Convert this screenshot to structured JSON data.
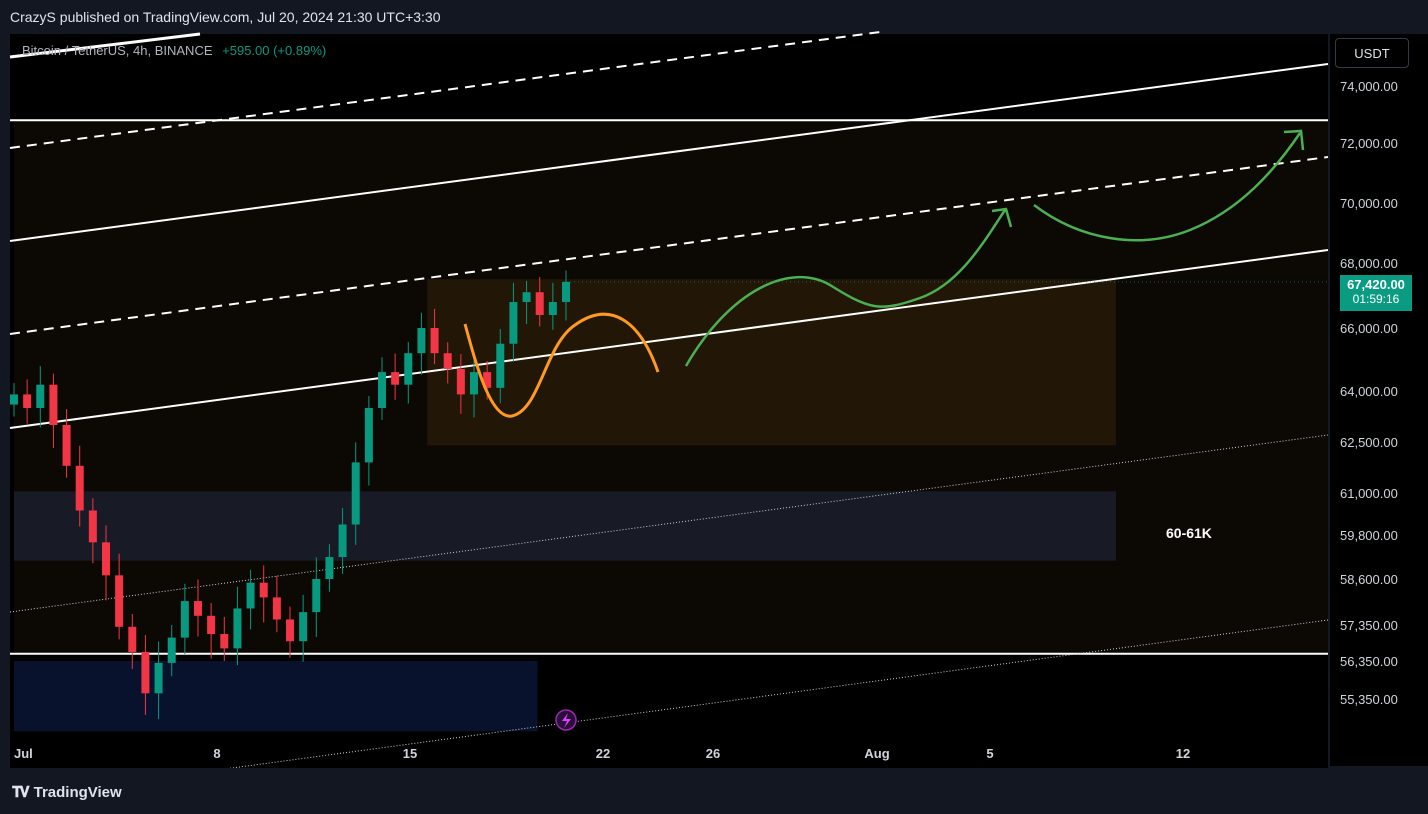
{
  "header": {
    "published": "CrazyS published on TradingView.com, Jul 20, 2024 21:30 UTC+3:30"
  },
  "legend": {
    "symbol": "Bitcoin / TetherUS, 4h, BINANCE",
    "change": "+595.00 (+0.89%)"
  },
  "currency_button": "USDT",
  "footer": {
    "brand": "TradingView"
  },
  "colors": {
    "background": "#000000",
    "up": "#089981",
    "down": "#f23645",
    "orange_path": "#ff9a1f",
    "green_path": "#4caf50",
    "box_fill": "#2d1f08",
    "zone_fill": "#1b2749",
    "last_price_bg": "#0a9c82"
  },
  "chart_data": {
    "type": "candlestick",
    "title": "",
    "symbol": "BTCUSDT",
    "timeframe": "4h",
    "exchange": "BINANCE",
    "y_ticks": [
      "74,000.00",
      "72,000.00",
      "70,000.00",
      "68,000.00",
      "66,000.00",
      "64,000.00",
      "62,500.00",
      "61,000.00",
      "59,800.00",
      "58,600.00",
      "57,350.00",
      "56,350.00",
      "55,350.00"
    ],
    "x_ticks": [
      "Jul",
      "8",
      "15",
      "22",
      "26",
      "Aug",
      "5",
      "12"
    ],
    "last_price": "67,420.00",
    "countdown": "01:59:16",
    "zone_label": "60-61K",
    "key_levels": [
      72800,
      56550
    ],
    "zones": [
      {
        "name": "consolidation box",
        "from_date": "Jul 16",
        "to_date": "Aug 10",
        "low": 62400,
        "high": 67500
      },
      {
        "name": "60-61K demand",
        "from_date": "Jul 1",
        "to_date": "Aug 10",
        "low": 59100,
        "high": 61050
      },
      {
        "name": "lower demand",
        "from_date": "Jul 1",
        "to_date": "Jul 20",
        "low": 54500,
        "high": 56350
      }
    ],
    "candles_close_approx": [
      63900,
      63500,
      64200,
      63000,
      61800,
      60500,
      59600,
      58700,
      57300,
      56600,
      55500,
      56300,
      57000,
      58000,
      57600,
      57100,
      56700,
      57800,
      58500,
      58100,
      57500,
      56900,
      57700,
      58600,
      59200,
      60100,
      61900,
      63500,
      64600,
      64200,
      65200,
      66000,
      65200,
      64700,
      63900,
      64600,
      64100,
      65500,
      66800,
      67100,
      66400,
      66800,
      67420
    ]
  }
}
